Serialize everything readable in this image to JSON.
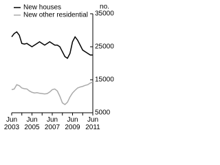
{
  "chart_data": {
    "type": "line",
    "y_unit": "no.",
    "categories": [
      "Jun 2003",
      null,
      null,
      null,
      null,
      null,
      null,
      null,
      "Jun 2005",
      null,
      null,
      null,
      null,
      null,
      null,
      null,
      "Jun 2007",
      null,
      null,
      null,
      null,
      null,
      null,
      null,
      "Jun 2009",
      null,
      null,
      null,
      null,
      null,
      null,
      null,
      "Jun 2011"
    ],
    "series": [
      {
        "name": "New houses",
        "color": "#000000",
        "values": [
          28000,
          29000,
          29500,
          28500,
          26000,
          25800,
          26000,
          25500,
          25000,
          25500,
          26000,
          26500,
          26000,
          25500,
          26000,
          26500,
          26000,
          25500,
          25500,
          25000,
          23500,
          22000,
          21500,
          23000,
          26500,
          28000,
          27000,
          25500,
          24000,
          23500,
          23000,
          22500,
          22500
        ]
      },
      {
        "name": "New other residential",
        "color": "#aaaaaa",
        "values": [
          12000,
          12200,
          13500,
          13200,
          12500,
          12300,
          12200,
          11600,
          11200,
          11000,
          11100,
          10900,
          10800,
          10700,
          10800,
          11300,
          12000,
          12200,
          11600,
          10000,
          8000,
          7500,
          8200,
          9800,
          11000,
          11800,
          12500,
          12800,
          13000,
          13300,
          13500,
          14000,
          14300
        ]
      }
    ],
    "ylim": [
      5000,
      35000
    ],
    "yticks": [
      5000,
      15000,
      25000,
      35000
    ],
    "legend": "top-left"
  }
}
